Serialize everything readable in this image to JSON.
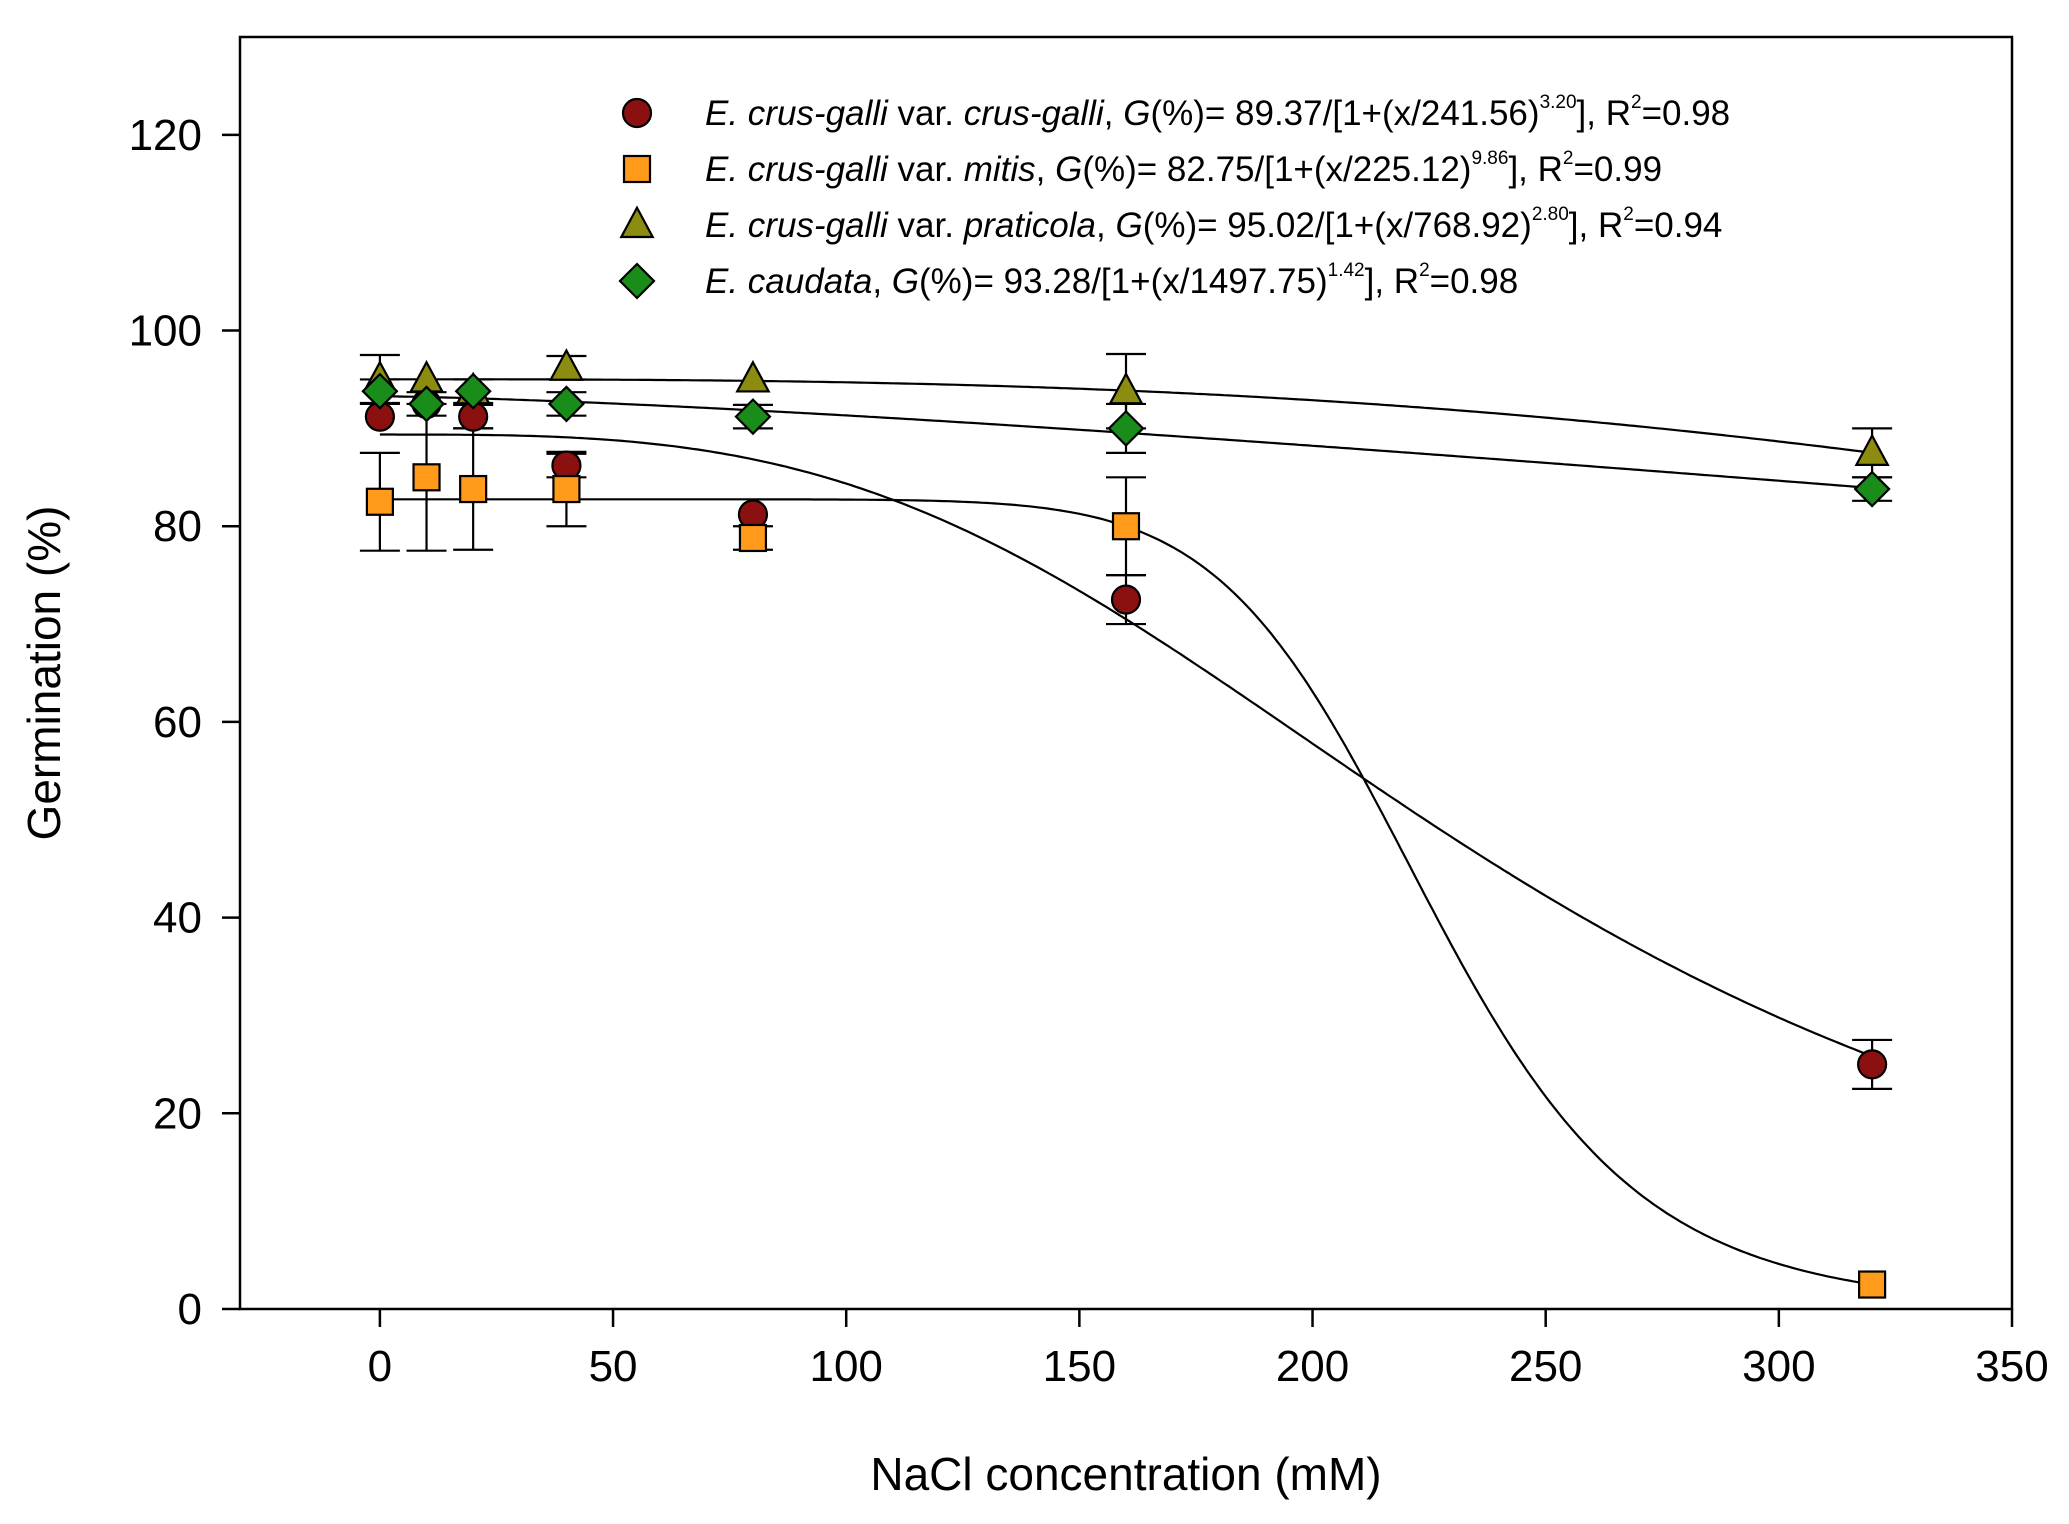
{
  "chart_data": {
    "type": "scatter",
    "xlabel": "NaCl concentration (mM)",
    "ylabel": "Germination (%)",
    "xlim": [
      -30,
      350
    ],
    "ylim": [
      0,
      130
    ],
    "xticks": [
      0,
      50,
      100,
      150,
      200,
      250,
      300,
      350
    ],
    "yticks": [
      0,
      20,
      40,
      60,
      80,
      100,
      120
    ],
    "grid": false,
    "legend_position": "top-right",
    "series": [
      {
        "name": "E. crus-galli var. crus-galli",
        "marker": "circle",
        "color": "#8b1010",
        "x": [
          0,
          10,
          20,
          40,
          80,
          160,
          320
        ],
        "y": [
          91.2,
          92.5,
          91.2,
          86.2,
          81.2,
          72.5,
          25.0
        ],
        "err": [
          0,
          0,
          1.2,
          1.2,
          0,
          2.5,
          2.5
        ],
        "fit": {
          "a": 89.37,
          "b": 241.56,
          "c": 3.2
        },
        "legend_parts": [
          {
            "t": "E. crus-galli",
            "i": true
          },
          {
            "t": " var. "
          },
          {
            "t": "crus-galli",
            "i": true
          },
          {
            "t": ", "
          },
          {
            "t": "G",
            "i": true
          },
          {
            "t": "(%)= 89.37/[1+(x/241.56)"
          },
          {
            "t": "3.20",
            "sup": true
          },
          {
            "t": "], R"
          },
          {
            "t": "2",
            "sup": true
          },
          {
            "t": "=0.98"
          }
        ]
      },
      {
        "name": "E. crus-galli var. mitis",
        "marker": "square",
        "color": "#ff9a1a",
        "x": [
          0,
          10,
          20,
          40,
          80,
          160,
          320
        ],
        "y": [
          82.5,
          85.0,
          83.8,
          83.8,
          78.8,
          80.0,
          2.5
        ],
        "err": [
          5.0,
          7.5,
          6.2,
          3.8,
          1.2,
          5.0,
          0
        ],
        "fit": {
          "a": 82.75,
          "b": 225.12,
          "c": 9.86
        },
        "legend_parts": [
          {
            "t": "E. crus-galli",
            "i": true
          },
          {
            "t": " var. "
          },
          {
            "t": "mitis",
            "i": true
          },
          {
            "t": ", "
          },
          {
            "t": "G",
            "i": true
          },
          {
            "t": "(%)= 82.75/[1+(x/225.12)"
          },
          {
            "t": "9.86",
            "sup": true
          },
          {
            "t": "], R"
          },
          {
            "t": "2",
            "sup": true
          },
          {
            "t": "=0.99"
          }
        ]
      },
      {
        "name": "E. crus-galli var. praticola",
        "marker": "triangle",
        "color": "#8c8c10",
        "x": [
          0,
          10,
          20,
          40,
          80,
          160,
          320
        ],
        "y": [
          95.0,
          95.0,
          93.8,
          96.2,
          95.0,
          93.8,
          87.5
        ],
        "err": [
          2.5,
          0,
          0,
          1.2,
          0,
          3.8,
          2.5
        ],
        "fit": {
          "a": 95.02,
          "b": 768.92,
          "c": 2.8
        },
        "legend_parts": [
          {
            "t": "E. crus-galli",
            "i": true
          },
          {
            "t": " var. "
          },
          {
            "t": "praticola",
            "i": true
          },
          {
            "t": ", "
          },
          {
            "t": "G",
            "i": true
          },
          {
            "t": "(%)= 95.02/[1+(x/768.92)"
          },
          {
            "t": "2.80",
            "sup": true
          },
          {
            "t": "], R"
          },
          {
            "t": "2",
            "sup": true
          },
          {
            "t": "=0.94"
          }
        ]
      },
      {
        "name": "E. caudata",
        "marker": "diamond",
        "color": "#1a8c1a",
        "x": [
          0,
          10,
          20,
          40,
          80,
          160,
          320
        ],
        "y": [
          93.8,
          92.5,
          93.8,
          92.5,
          91.2,
          90.0,
          83.8
        ],
        "err": [
          1.2,
          1.2,
          1.2,
          1.2,
          1.2,
          2.5,
          1.2
        ],
        "fit": {
          "a": 93.28,
          "b": 1497.75,
          "c": 1.42
        },
        "legend_parts": [
          {
            "t": "E. caudata",
            "i": true
          },
          {
            "t": ", "
          },
          {
            "t": "G",
            "i": true
          },
          {
            "t": "(%)= 93.28/[1+(x/1497.75)"
          },
          {
            "t": "1.42",
            "sup": true
          },
          {
            "t": "], R"
          },
          {
            "t": "2",
            "sup": true
          },
          {
            "t": "=0.98"
          }
        ]
      }
    ]
  }
}
